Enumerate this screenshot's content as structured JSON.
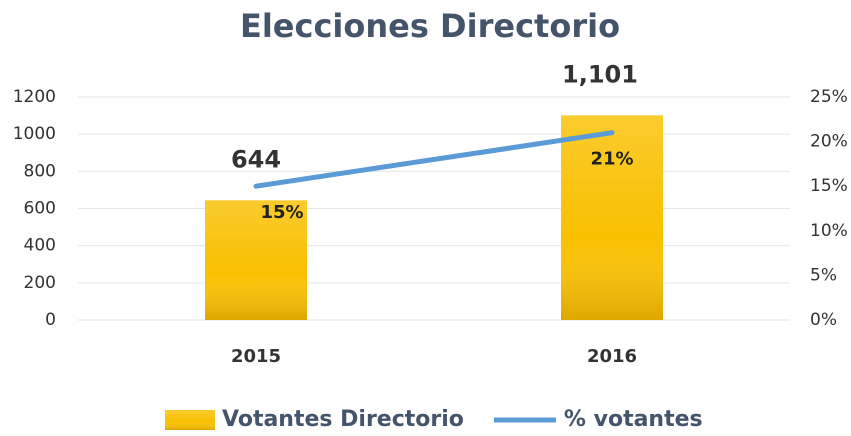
{
  "chart_data": {
    "type": "bar",
    "title": "Elecciones Directorio",
    "categories": [
      "2015",
      "2016"
    ],
    "series": [
      {
        "name": "Votantes Directorio",
        "type": "bar",
        "color": "#f9c000",
        "values": [
          644,
          1101
        ],
        "value_labels": [
          "644",
          "1,101"
        ]
      },
      {
        "name": "% votantes",
        "type": "line",
        "axis": "y2",
        "color": "#5b9bd5",
        "values": [
          15,
          21
        ],
        "value_labels": [
          "15%",
          "21%"
        ]
      }
    ],
    "ylim": [
      0,
      1200
    ],
    "yticks": [
      0,
      200,
      400,
      600,
      800,
      1000,
      1200
    ],
    "y2lim": [
      0,
      25
    ],
    "y2ticks": [
      {
        "value": 0,
        "label": "0%"
      },
      {
        "value": 5,
        "label": "5%"
      },
      {
        "value": 10,
        "label": "10%"
      },
      {
        "value": 15,
        "label": "15%"
      },
      {
        "value": 20,
        "label": "20%"
      },
      {
        "value": 25,
        "label": "25%"
      }
    ],
    "grid": true,
    "legend": "bottom"
  }
}
